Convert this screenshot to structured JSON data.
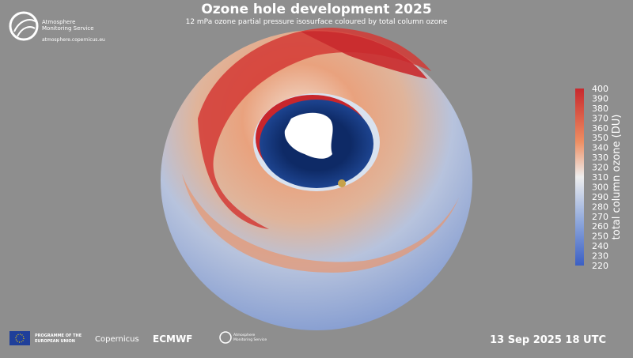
{
  "header": {
    "title": "Ozone hole development 2025",
    "subtitle": "12 mPa ozone partial pressure isosurface coloured by total column ozone"
  },
  "logo": {
    "line1": "Atmosphere",
    "line2": "Monitoring Service",
    "url": "atmosphere.copernicus.eu"
  },
  "colorbar": {
    "label": "total column ozone (DU)",
    "ticks": [
      400,
      390,
      380,
      370,
      360,
      350,
      340,
      330,
      320,
      310,
      300,
      290,
      280,
      270,
      260,
      250,
      240,
      230,
      220
    ]
  },
  "timestamp": "13 Sep 2025 18 UTC",
  "footer": {
    "eu_line1": "PROGRAMME OF THE",
    "eu_line2": "EUROPEAN UNION",
    "copernicus": "Copernicus",
    "ecmwf": "ECMWF",
    "ams_line1": "Atmosphere",
    "ams_line2": "Monitoring Service"
  }
}
